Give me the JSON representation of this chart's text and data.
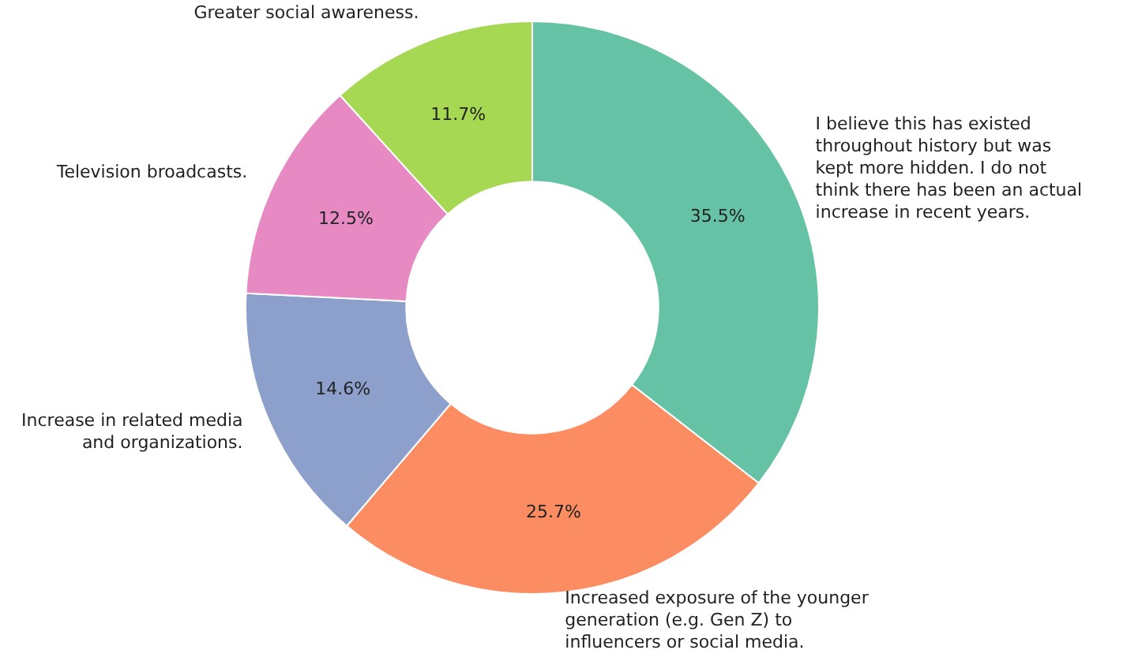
{
  "chart_data": {
    "type": "donut",
    "categories": [
      "I believe this has existed throughout history but was kept more hidden. I do not think there has been an actual increase in recent years.",
      "Increased exposure of the younger generation (e.g. Gen Z) to influencers or social media.",
      "Increase in related media and organizations.",
      "Television broadcasts.",
      "Greater social awareness."
    ],
    "values": [
      35.5,
      25.7,
      14.6,
      12.5,
      11.7
    ],
    "value_labels": [
      "35.5%",
      "25.7%",
      "14.6%",
      "12.5%",
      "11.7%"
    ],
    "colors": [
      "#66c2a5",
      "#fc8d62",
      "#8da0cb",
      "#e78ac3",
      "#a6d854"
    ],
    "legend": false
  }
}
